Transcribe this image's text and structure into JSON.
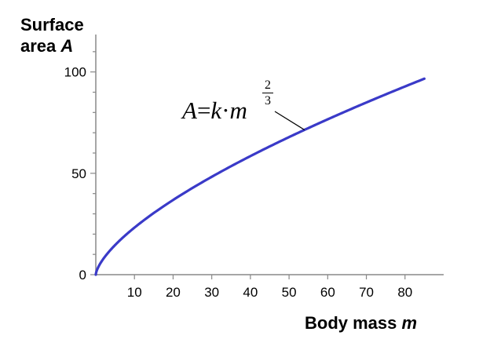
{
  "chart_data": {
    "type": "line",
    "xlabel": "Body mass",
    "xlabel_var": "m",
    "ylabel_line1": "Surface",
    "ylabel_line2": "area",
    "ylabel_var": "A",
    "xlim": [
      0,
      90
    ],
    "ylim": [
      0,
      120
    ],
    "x_ticks": [
      10,
      20,
      30,
      40,
      50,
      60,
      70,
      80
    ],
    "y_ticks": [
      0,
      50,
      100
    ],
    "y_minor_step": 10,
    "grid": false,
    "line_color": "#3a3ac8",
    "series": [
      {
        "function": "A = k * m^(2/3)",
        "k": 5.0,
        "x_range": [
          0,
          85
        ],
        "x": [
          0,
          1,
          5,
          10,
          20,
          30,
          40,
          50,
          60,
          70,
          80,
          85
        ],
        "y": [
          0,
          5.0,
          14.6,
          23.2,
          36.8,
          48.3,
          58.5,
          67.9,
          76.6,
          84.9,
          92.8,
          96.7
        ]
      }
    ],
    "annotation": {
      "lhs": "A",
      "eq": "=",
      "k": "k",
      "dot": "·",
      "m": "m",
      "exp_num": "2",
      "exp_den": "3",
      "points_to_x": 54
    }
  }
}
